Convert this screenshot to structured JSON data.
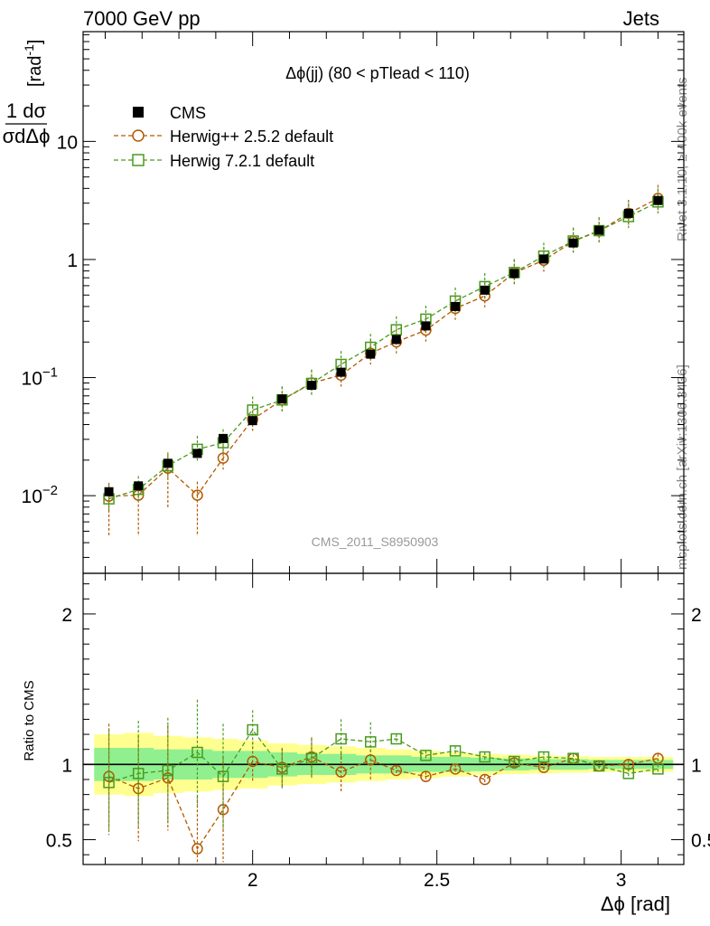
{
  "header": {
    "left": "7000 GeV pp",
    "right": "Jets"
  },
  "side_labels": {
    "rivet": "Rivet 3.1.10, ≥ 400k events",
    "mcplots": "mcplots.cern.ch [arXiv:1306.3436]"
  },
  "watermark": "CMS_2011_S8950903",
  "chart_data": [
    {
      "type": "scatter",
      "panel": "main",
      "title": "Δϕ(jj) (80 < pTlead <  110)",
      "ylabel": "1/σ dσ/dΔϕ [rad⁻¹]",
      "ylabel_num": "1 dσ",
      "ylabel_den": "σdΔϕ",
      "ylabel_unit": "[rad",
      "ylabel_unit_exp": "-1",
      "ylabel_unit_close": "]",
      "yscale": "log",
      "xlim": [
        1.54,
        3.17
      ],
      "ylim": [
        0.0022,
        85
      ],
      "yticks": [
        {
          "value": 10,
          "label": "10"
        },
        {
          "value": 1,
          "label": "1"
        },
        {
          "value": 0.1,
          "label": "10",
          "exp": "−1"
        },
        {
          "value": 0.01,
          "label": "10",
          "exp": "−2"
        }
      ],
      "x": [
        1.61,
        1.69,
        1.77,
        1.85,
        1.92,
        2.0,
        2.08,
        2.16,
        2.24,
        2.32,
        2.39,
        2.47,
        2.55,
        2.63,
        2.71,
        2.79,
        2.87,
        2.94,
        3.02,
        3.1
      ],
      "series": [
        {
          "name": "CMS",
          "style": "data",
          "color": "#000000",
          "values": [
            0.0108,
            0.0121,
            0.0188,
            0.0228,
            0.0305,
            0.0432,
            0.066,
            0.086,
            0.111,
            0.158,
            0.21,
            0.274,
            0.4,
            0.55,
            0.76,
            1.01,
            1.38,
            1.77,
            2.46,
            3.16
          ]
        },
        {
          "name": "Herwig++ 2.5.2 default",
          "style": "circle",
          "color": "#b35900",
          "values": [
            0.0099,
            0.0101,
            0.0171,
            0.0101,
            0.0208,
            0.0442,
            0.0648,
            0.0901,
            0.1048,
            0.1609,
            0.2005,
            0.252,
            0.3847,
            0.4917,
            0.7701,
            0.9849,
            1.426,
            1.7418,
            2.46,
            3.2898
          ]
        },
        {
          "name": "Herwig 7.2.1 default",
          "style": "square",
          "color": "#4a9a1e",
          "values": [
            0.0094,
            0.0113,
            0.0179,
            0.0247,
            0.0281,
            0.0531,
            0.0646,
            0.0893,
            0.1293,
            0.1805,
            0.2541,
            0.3127,
            0.4448,
            0.5897,
            0.7763,
            1.0686,
            1.4352,
            1.7557,
            2.3073,
            3.0731
          ]
        }
      ],
      "legend": "top-left"
    },
    {
      "type": "scatter",
      "panel": "ratio",
      "ylabel": "Ratio to CMS",
      "xlabel": "Δϕ [rad]",
      "xlim": [
        1.54,
        3.17
      ],
      "ylim": [
        0.335,
        2.27
      ],
      "xticks": [
        {
          "value": 2,
          "label": "2"
        },
        {
          "value": 2.5,
          "label": "2.5"
        },
        {
          "value": 3,
          "label": "3"
        }
      ],
      "yticks": [
        {
          "value": 2,
          "label": "2"
        },
        {
          "value": 1,
          "label": "1"
        },
        {
          "value": 0.5,
          "label": "0.5"
        }
      ],
      "band_inner_halfwidth": [
        0.11,
        0.11,
        0.1,
        0.1,
        0.09,
        0.09,
        0.08,
        0.07,
        0.07,
        0.06,
        0.06,
        0.05,
        0.05,
        0.045,
        0.04,
        0.035,
        0.035,
        0.03,
        0.03,
        0.03
      ],
      "band_outer_halfwidth": [
        0.2,
        0.21,
        0.19,
        0.18,
        0.17,
        0.16,
        0.14,
        0.13,
        0.12,
        0.11,
        0.1,
        0.09,
        0.08,
        0.07,
        0.065,
        0.06,
        0.055,
        0.05,
        0.05,
        0.05
      ],
      "band_inner_color": "#90f090",
      "band_outer_color": "#ffff90",
      "series": [
        {
          "name": "Herwig++ 2.5.2 default",
          "color": "#b35900",
          "values": [
            0.92,
            0.84,
            0.91,
            0.44,
            0.7,
            1.02,
            0.98,
            1.05,
            0.95,
            1.03,
            0.96,
            0.92,
            0.97,
            0.9,
            1.01,
            0.98,
            1.04,
            0.99,
            1.0,
            1.04
          ]
        },
        {
          "name": "Herwig 7.2.1 default",
          "color": "#4a9a1e",
          "values": [
            0.88,
            0.94,
            0.96,
            1.08,
            0.92,
            1.23,
            0.97,
            1.04,
            1.17,
            1.15,
            1.17,
            1.06,
            1.09,
            1.05,
            1.02,
            1.05,
            1.04,
            0.99,
            0.94,
            0.97
          ]
        }
      ]
    }
  ]
}
